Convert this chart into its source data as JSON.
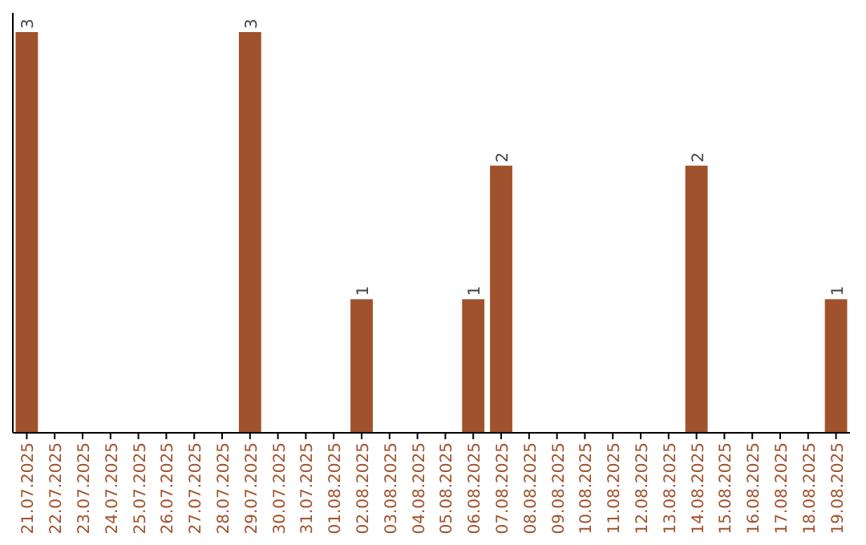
{
  "chart_data": {
    "type": "bar",
    "categories": [
      "21.07.2025",
      "22.07.2025",
      "23.07.2025",
      "24.07.2025",
      "25.07.2025",
      "26.07.2025",
      "27.07.2025",
      "28.07.2025",
      "29.07.2025",
      "30.07.2025",
      "31.07.2025",
      "01.08.2025",
      "02.08.2025",
      "03.08.2025",
      "04.08.2025",
      "05.08.2025",
      "06.08.2025",
      "07.08.2025",
      "08.08.2025",
      "09.08.2025",
      "10.08.2025",
      "11.08.2025",
      "12.08.2025",
      "13.08.2025",
      "14.08.2025",
      "15.08.2025",
      "16.08.2025",
      "17.08.2025",
      "18.08.2025",
      "19.08.2025"
    ],
    "values": [
      3,
      0,
      0,
      0,
      0,
      0,
      0,
      0,
      3,
      0,
      0,
      0,
      1,
      0,
      0,
      0,
      1,
      2,
      0,
      0,
      0,
      0,
      0,
      0,
      2,
      0,
      0,
      0,
      0,
      1
    ],
    "value_labels": [
      "3",
      null,
      null,
      null,
      null,
      null,
      null,
      null,
      "3",
      null,
      null,
      null,
      "1",
      null,
      null,
      null,
      "1",
      "2",
      null,
      null,
      null,
      null,
      null,
      null,
      "2",
      null,
      null,
      null,
      null,
      "1"
    ],
    "color": "#a0522d",
    "ylim": [
      0,
      3
    ]
  }
}
